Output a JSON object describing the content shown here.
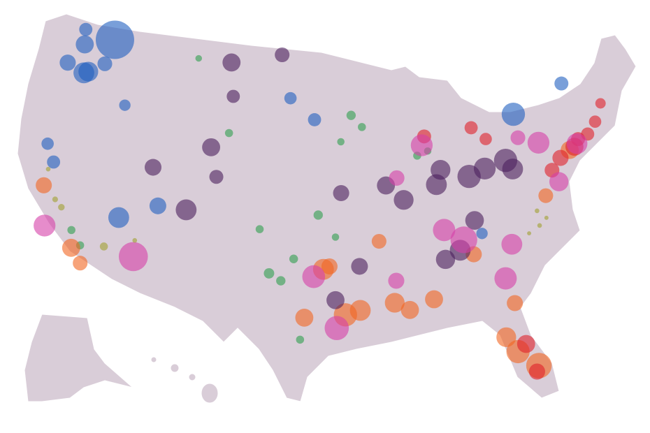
{
  "chart_data": {
    "type": "bubble_map",
    "series": [
      {
        "color": "#1f5fbf",
        "lon": [
          -118.98,
          -121.9,
          -122.3,
          -123.0,
          -121.1,
          -120.7,
          -116.3,
          -119.3,
          -122.5,
          -121.5,
          -114.7,
          -111.5,
          -83.5,
          -79.0,
          -73.7,
          -98.0,
          -100.4
        ],
        "lat": [
          47.95,
          47.5,
          48.5,
          46.2,
          45.6,
          45.7,
          43.6,
          46.3,
          40.7,
          39.5,
          36.0,
          36.9,
          35.1,
          43.1,
          45.0,
          43.0,
          44.45
        ],
        "size": [
          6800,
          1500,
          800,
          1200,
          2000,
          1800,
          600,
          1000,
          700,
          800,
          2000,
          1300,
          600,
          2500,
          900,
          800,
          700
        ]
      },
      {
        "color": "#2e9e4f",
        "lon": [
          -93.5,
          -94.5,
          -95.5,
          -101.5,
          -100.5,
          -99.5,
          -102.5,
          -97.5,
          -96.0,
          -106.0,
          -117.5,
          -88.5,
          -87.5,
          -98.8,
          -118.5,
          -110.0
        ],
        "lat": [
          42.5,
          43.3,
          41.5,
          32.5,
          32.0,
          33.5,
          35.5,
          36.5,
          35.0,
          42.0,
          34.0,
          40.5,
          40.8,
          28.0,
          35.0,
          47.0
        ],
        "size": [
          300,
          400,
          250,
          500,
          400,
          350,
          300,
          400,
          250,
          300,
          300,
          300,
          250,
          300,
          300,
          200
        ]
      },
      {
        "color": "#f26522",
        "lon": [
          -95.2,
          -94.0,
          -91.2,
          -90.0,
          -97.0,
          -96.5,
          -98.5,
          -80.2,
          -81.7,
          -82.5,
          -81.5,
          -118.2,
          -117.2,
          -121.8,
          -84.4,
          -88.0,
          -92.3,
          -77.5,
          -74.5
        ],
        "lat": [
          29.7,
          30.0,
          30.5,
          30.0,
          32.8,
          33.0,
          29.5,
          26.0,
          27.0,
          28.0,
          30.3,
          33.8,
          32.8,
          37.9,
          33.7,
          30.7,
          34.7,
          37.5,
          40.5
        ],
        "size": [
          2500,
          2000,
          1800,
          1500,
          2000,
          1200,
          1500,
          3000,
          2500,
          1800,
          1200,
          1500,
          1000,
          1200,
          1200,
          1500,
          1000,
          1000,
          1500
        ]
      },
      {
        "color": "#4b1f5e",
        "lon": [
          -84.0,
          -82.5,
          -87.0,
          -86.5,
          -80.5,
          -80.0,
          -90.0,
          -91.5,
          -85.5,
          -86.8,
          -94.0,
          -96.0,
          -106.7,
          -109.0,
          -112.5,
          -106.0,
          -101.5,
          -106.6,
          -107.5,
          -95.5,
          -84.0
        ],
        "lat": [
          39.0,
          39.5,
          38.5,
          39.5,
          40.0,
          39.4,
          37.5,
          38.5,
          34.0,
          33.4,
          33.0,
          30.7,
          39.0,
          36.7,
          39.5,
          44.5,
          47.4,
          46.8,
          41.0,
          38.0,
          36.0
        ],
        "size": [
          2500,
          2200,
          2000,
          1800,
          2500,
          2000,
          1800,
          1500,
          2000,
          1700,
          1300,
          1500,
          900,
          2000,
          1300,
          800,
          1000,
          1500,
          1500,
          1200,
          1600
        ]
      },
      {
        "color": "#e0202a",
        "lon": [
          -74.0,
          -73.5,
          -71.5,
          -72.5,
          -75.5,
          -76.5,
          -81.0,
          -80.4,
          -87.7,
          -83.2,
          -82.0,
          -70.5
        ],
        "lat": [
          40.7,
          41.2,
          42.3,
          41.5,
          40.0,
          39.2,
          27.5,
          25.6,
          41.8,
          42.3,
          41.5,
          43.5
        ],
        "size": [
          1500,
          900,
          700,
          800,
          1200,
          1000,
          1500,
          1200,
          900,
          800,
          700,
          500
        ]
      },
      {
        "color": "#d63fa8",
        "lon": [
          -120.85,
          -112.9,
          -79.0,
          -73.7,
          -77.2,
          -81.1,
          -88.0,
          -91.0,
          -85.1,
          -95.9,
          -90.5,
          -86.7,
          -82.0,
          -97.8,
          -76.1
        ],
        "lat": [
          35.2,
          33.4,
          41.5,
          40.9,
          41.1,
          34.3,
          41.2,
          32.0,
          34.7,
          28.8,
          39.0,
          35.4,
          32.0,
          32.3,
          38.4
        ],
        "size": [
          2200,
          3900,
          1000,
          2000,
          2200,
          2000,
          2200,
          1200,
          3300,
          2700,
          1100,
          2300,
          2300,
          2400,
          1700
        ]
      },
      {
        "color": "#a0a030",
        "lon": [
          -78.5,
          -79.5,
          -77.8,
          -119.8,
          -120.5,
          -115.5,
          -113.0,
          -121.8,
          -78.5
        ],
        "lat": [
          35.5,
          35.0,
          36.0,
          36.5,
          37.0,
          34.0,
          34.5,
          39.0,
          36.5
        ],
        "size": [
          100,
          80,
          80,
          200,
          150,
          300,
          100,
          100,
          100
        ]
      }
    ]
  }
}
